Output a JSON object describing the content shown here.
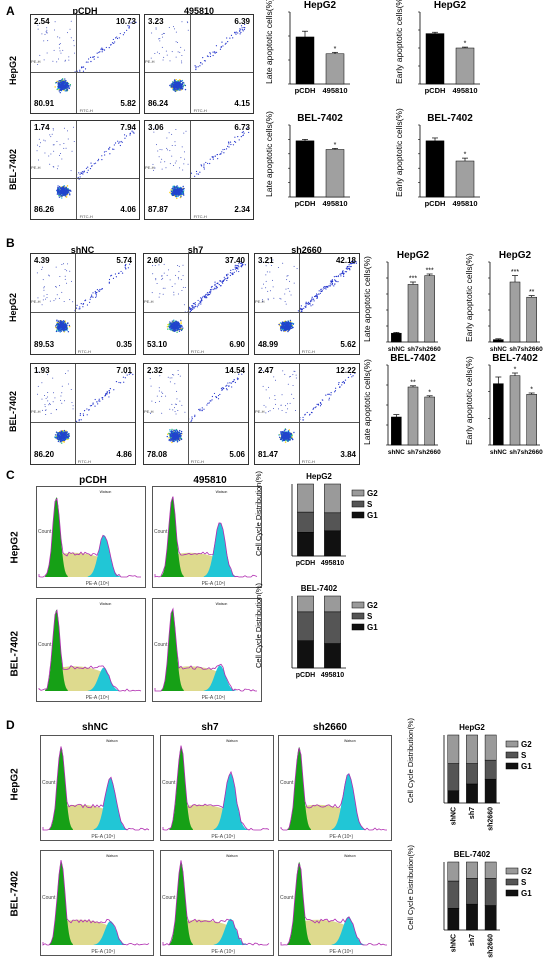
{
  "panels": {
    "A": {
      "letter": "A",
      "col_titles": [
        "pCDH",
        "495810"
      ],
      "row_labels": [
        "HepG2",
        "BEL-7402"
      ],
      "flow": [
        [
          {
            "ul": "2.54",
            "ur": "10.73",
            "ll": "80.91",
            "lr": "5.82"
          },
          {
            "ul": "3.23",
            "ur": "6.39",
            "ll": "86.24",
            "lr": "4.15"
          }
        ],
        [
          {
            "ul": "1.74",
            "ur": "7.94",
            "ll": "86.26",
            "lr": "4.06"
          },
          {
            "ul": "3.06",
            "ur": "6.73",
            "ll": "87.87",
            "lr": "2.34"
          }
        ]
      ],
      "axis_x": "FITC-H",
      "axis_y": "PE-H"
    },
    "B": {
      "letter": "B",
      "col_titles": [
        "shNC",
        "sh7",
        "sh2660"
      ],
      "row_labels": [
        "HepG2",
        "BEL-7402"
      ],
      "flow": [
        [
          {
            "ul": "4.39",
            "ur": "5.74",
            "ll": "89.53",
            "lr": "0.35"
          },
          {
            "ul": "2.60",
            "ur": "37.40",
            "ll": "53.10",
            "lr": "6.90"
          },
          {
            "ul": "3.21",
            "ur": "42.18",
            "ll": "48.99",
            "lr": "5.62"
          }
        ],
        [
          {
            "ul": "1.93",
            "ur": "7.01",
            "ll": "86.20",
            "lr": "4.86"
          },
          {
            "ul": "2.32",
            "ur": "14.54",
            "ll": "78.08",
            "lr": "5.06"
          },
          {
            "ul": "2.47",
            "ur": "12.22",
            "ll": "81.47",
            "lr": "3.84"
          }
        ]
      ],
      "axis_x": "FITC-H",
      "axis_y": "PE-H"
    },
    "C": {
      "letter": "C",
      "col_titles": [
        "pCDH",
        "495810"
      ],
      "row_labels": [
        "HepG2",
        "BEL-7402"
      ],
      "axis_x": "PE-A (10⁵)",
      "axis_y": "Count"
    },
    "D": {
      "letter": "D",
      "col_titles": [
        "shNC",
        "sh7",
        "sh2660"
      ],
      "row_labels": [
        "HepG2",
        "BEL-7402"
      ],
      "axis_x": "PE-A (10⁵)",
      "axis_y": "Count"
    }
  },
  "chart_data": [
    {
      "id": "A-hep-late",
      "type": "bar",
      "title": "HepG2",
      "ylabel": "Late apoptotic cells(%)",
      "categories": [
        "pCDH",
        "495810"
      ],
      "values": [
        9.8,
        6.3
      ],
      "errors": [
        1.2,
        0.3
      ],
      "ylim": [
        0,
        15
      ],
      "yticks": [
        0,
        5,
        10,
        15
      ],
      "sig": [
        "",
        "*"
      ]
    },
    {
      "id": "A-hep-early",
      "type": "bar",
      "title": "HepG2",
      "ylabel": "Early apoptotic cells(%)",
      "categories": [
        "pCDH",
        "495810"
      ],
      "values": [
        5.6,
        4.0
      ],
      "errors": [
        0.15,
        0.1
      ],
      "ylim": [
        0,
        8
      ],
      "yticks": [
        0,
        2,
        4,
        6,
        8
      ],
      "sig": [
        "",
        "*"
      ]
    },
    {
      "id": "A-bel-late",
      "type": "bar",
      "title": "BEL-7402",
      "ylabel": "Late apoptotic cells(%)",
      "categories": [
        "pCDH",
        "495810"
      ],
      "values": [
        7.8,
        6.6
      ],
      "errors": [
        0.2,
        0.15
      ],
      "ylim": [
        0,
        10
      ],
      "yticks": [
        0,
        2,
        4,
        6,
        8,
        10
      ],
      "sig": [
        "",
        "*"
      ]
    },
    {
      "id": "A-bel-early",
      "type": "bar",
      "title": "BEL-7402",
      "ylabel": "Early apoptotic cells(%)",
      "categories": [
        "pCDH",
        "495810"
      ],
      "values": [
        3.9,
        2.5
      ],
      "errors": [
        0.2,
        0.2
      ],
      "ylim": [
        0,
        5
      ],
      "yticks": [
        0,
        1,
        2,
        3,
        4,
        5
      ],
      "sig": [
        "",
        "*"
      ]
    },
    {
      "id": "B-hep-late",
      "type": "bar",
      "title": "HepG2",
      "ylabel": "Late apoptotic cells(%)",
      "categories": [
        "shNC",
        "sh7",
        "sh2660"
      ],
      "values": [
        5.5,
        36,
        41.5
      ],
      "errors": [
        0.5,
        1.5,
        1.0
      ],
      "ylim": [
        0,
        50
      ],
      "yticks": [
        0,
        10,
        20,
        30,
        40,
        50
      ],
      "sig": [
        "",
        "***",
        "***"
      ]
    },
    {
      "id": "B-hep-early",
      "type": "bar",
      "title": "HepG2",
      "ylabel": "Early apoptotic cells(%)",
      "categories": [
        "shNC",
        "sh7",
        "sh2660"
      ],
      "values": [
        0.3,
        7.5,
        5.6
      ],
      "errors": [
        0.1,
        0.8,
        0.2
      ],
      "ylim": [
        0,
        10
      ],
      "yticks": [
        0,
        2,
        4,
        6,
        8,
        10
      ],
      "sig": [
        "",
        "***",
        "**"
      ]
    },
    {
      "id": "B-bel-late",
      "type": "bar",
      "title": "BEL-7402",
      "ylabel": "Late apoptotic cells(%)",
      "categories": [
        "shNC",
        "sh7",
        "sh2660"
      ],
      "values": [
        7,
        14.5,
        12
      ],
      "errors": [
        0.6,
        0.3,
        0.3
      ],
      "ylim": [
        0,
        20
      ],
      "yticks": [
        0,
        5,
        10,
        15,
        20
      ],
      "sig": [
        "",
        "**",
        "*"
      ]
    },
    {
      "id": "B-bel-early",
      "type": "bar",
      "title": "BEL-7402",
      "ylabel": "Early apoptotic cells(%)",
      "categories": [
        "shNC",
        "sh7",
        "sh2660"
      ],
      "values": [
        4.6,
        5.2,
        3.8
      ],
      "errors": [
        0.5,
        0.2,
        0.1
      ],
      "ylim": [
        0,
        6
      ],
      "yticks": [
        0,
        2,
        4,
        6
      ],
      "sig": [
        "",
        "*",
        "*"
      ]
    },
    {
      "id": "C-hep",
      "type": "stacked-bar",
      "title": "HepG2",
      "ylabel": "Cell Cycle Distribution(%)",
      "categories": [
        "pCDH",
        "495810"
      ],
      "series": [
        {
          "name": "G1",
          "values": [
            33,
            35
          ],
          "color": "#111111"
        },
        {
          "name": "S",
          "values": [
            28,
            25
          ],
          "color": "#555555"
        },
        {
          "name": "G2",
          "values": [
            39,
            40
          ],
          "color": "#9a9a9a"
        }
      ],
      "ylim": [
        0,
        100
      ],
      "legend_order": [
        "G2",
        "S",
        "G1"
      ]
    },
    {
      "id": "C-bel",
      "type": "stacked-bar",
      "title": "BEL-7402",
      "ylabel": "Cell Cycle Distribution(%)",
      "categories": [
        "pCDH",
        "495810"
      ],
      "series": [
        {
          "name": "G1",
          "values": [
            38,
            34
          ],
          "color": "#111111"
        },
        {
          "name": "S",
          "values": [
            40,
            44
          ],
          "color": "#555555"
        },
        {
          "name": "G2",
          "values": [
            22,
            22
          ],
          "color": "#9a9a9a"
        }
      ],
      "ylim": [
        0,
        100
      ],
      "legend_order": [
        "G2",
        "S",
        "G1"
      ]
    },
    {
      "id": "D-hep",
      "type": "stacked-bar",
      "title": "HepG2",
      "ylabel": "Cell Cycle Distribution(%)",
      "categories": [
        "shNC",
        "sh7",
        "sh2660"
      ],
      "series": [
        {
          "name": "G1",
          "values": [
            18,
            28,
            35
          ],
          "color": "#111111"
        },
        {
          "name": "S",
          "values": [
            40,
            30,
            28
          ],
          "color": "#555555"
        },
        {
          "name": "G2",
          "values": [
            42,
            42,
            37
          ],
          "color": "#9a9a9a"
        }
      ],
      "ylim": [
        0,
        100
      ],
      "legend_order": [
        "G2",
        "S",
        "G1"
      ]
    },
    {
      "id": "D-bel",
      "type": "stacked-bar",
      "title": "BEL-7402",
      "ylabel": "Cell Cycle Distribution(%)",
      "categories": [
        "shNC",
        "sh7",
        "sh2660"
      ],
      "series": [
        {
          "name": "G1",
          "values": [
            32,
            38,
            36
          ],
          "color": "#111111"
        },
        {
          "name": "S",
          "values": [
            40,
            38,
            40
          ],
          "color": "#555555"
        },
        {
          "name": "G2",
          "values": [
            28,
            24,
            24
          ],
          "color": "#9a9a9a"
        }
      ],
      "ylim": [
        0,
        100
      ],
      "legend_order": [
        "G2",
        "S",
        "G1"
      ]
    }
  ],
  "colors": {
    "bar_control": "#000000",
    "bar_treated": "#a0a0a0",
    "g1_peak": "#16a016",
    "g2_peak": "#21c6d6",
    "s_phase": "#d8d37a"
  },
  "cc_stats_header": "Watson"
}
